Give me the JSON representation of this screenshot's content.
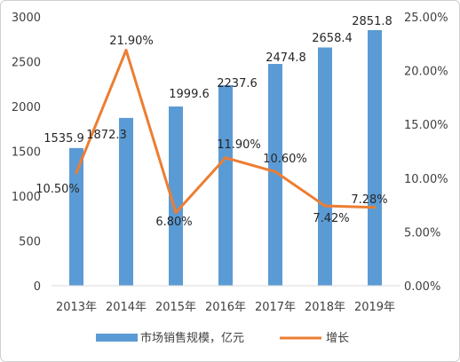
{
  "chart_data": {
    "type": "bar",
    "categories": [
      "2013年",
      "2014年",
      "2015年",
      "2016年",
      "2017年",
      "2018年",
      "2019年"
    ],
    "series": [
      {
        "name": "市场销售规模，亿元",
        "type": "bar",
        "axis": "left",
        "values": [
          1535.9,
          1872.3,
          1999.6,
          2237.6,
          2474.8,
          2658.4,
          2851.8
        ],
        "labels": [
          "1535.9",
          "1872.3",
          "1999.6",
          "2237.6",
          "2474.8",
          "2658.4",
          "2851.8"
        ],
        "color": "#5b9bd5"
      },
      {
        "name": "增长",
        "type": "line",
        "axis": "right",
        "values": [
          10.5,
          21.9,
          6.8,
          11.9,
          10.6,
          7.42,
          7.28
        ],
        "labels": [
          "10.50%",
          "21.90%",
          "6.80%",
          "11.90%",
          "10.60%",
          "7.42%",
          "7.28%"
        ],
        "color": "#ed7d31"
      }
    ],
    "y_left": {
      "ylim": [
        0,
        3000
      ],
      "ticks": [
        "0",
        "500",
        "1000",
        "1500",
        "2000",
        "2500",
        "3000"
      ]
    },
    "y_right": {
      "ylim": [
        0,
        25
      ],
      "ticks": [
        "0.00%",
        "5.00%",
        "10.00%",
        "15.00%",
        "20.00%",
        "25.00%"
      ]
    },
    "grid": false,
    "legend": "bottom"
  }
}
